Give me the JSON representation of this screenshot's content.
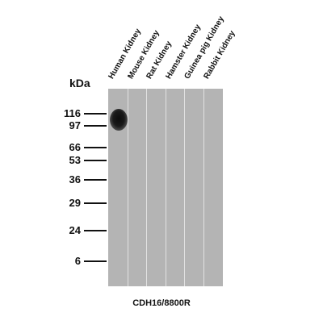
{
  "figure": {
    "unit_label": "kDa",
    "lanes": [
      "Human Kidney",
      "Mouse Kidney",
      "Rat Kidney",
      "Hamster Kidney",
      "Guinea pig Kidney",
      "Rabbit Kidney"
    ],
    "markers": [
      "116",
      "97",
      "66",
      "53",
      "36",
      "29",
      "24",
      "6"
    ],
    "band": {
      "lane": "Human Kidney",
      "approx_kda": "~110"
    },
    "caption": "CDH16/8800R",
    "colors": {
      "membrane": "#b4b4b4",
      "band": "#111111",
      "text": "#111111"
    }
  }
}
